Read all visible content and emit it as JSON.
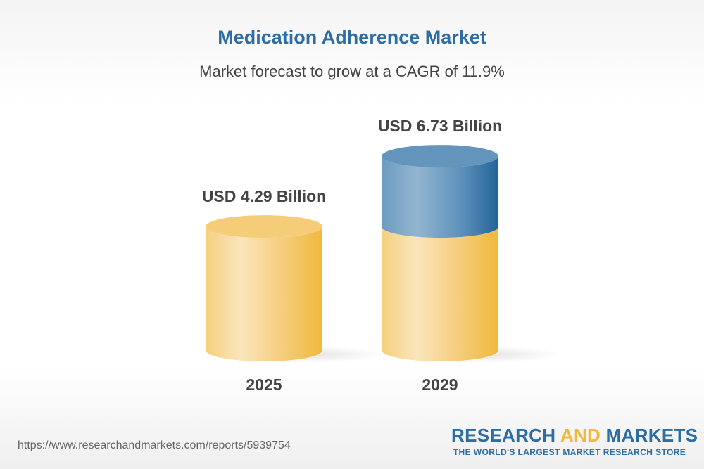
{
  "title": "Medication Adherence Market",
  "subtitle": "Market forecast to grow at a CAGR of 11.9%",
  "chart_data": {
    "type": "bar",
    "style": "3d-cylinder",
    "categories": [
      "2025",
      "2029"
    ],
    "values": [
      4.29,
      6.73
    ],
    "value_labels": [
      "USD 4.29 Billion",
      "USD 6.73 Billion"
    ],
    "unit": "USD Billion",
    "cagr": "11.9%",
    "colors": {
      "base": "#f0b93b",
      "growth": "#2e6da4"
    },
    "grid": false
  },
  "footer": {
    "url": "https://www.researchandmarkets.com/reports/5939754",
    "logo_part1": "RESEARCH ",
    "logo_part2": "AND",
    "logo_part3": " MARKETS",
    "logo_tagline": "THE WORLD'S LARGEST MARKET RESEARCH STORE"
  }
}
